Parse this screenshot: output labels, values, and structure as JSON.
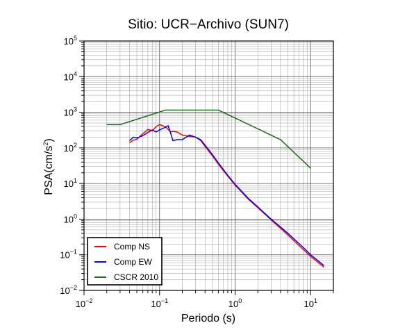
{
  "chart_data": {
    "type": "line",
    "title": "Sitio: UCR−Archivo (SUN7)",
    "xlabel": "Periodo (s)",
    "ylabel_prefix": "PSA(cm/s",
    "ylabel_sup": "2",
    "ylabel_suffix": ")",
    "xscale": "log",
    "yscale": "log",
    "xlim": [
      0.01,
      20
    ],
    "ylim": [
      0.01,
      100000
    ],
    "grid": true,
    "legend_position": "bottom-left",
    "x_ticks": [
      {
        "base": "10",
        "exp": "−2"
      },
      {
        "base": "10",
        "exp": "−1"
      },
      {
        "base": "10",
        "exp": "0"
      },
      {
        "base": "10",
        "exp": "1"
      }
    ],
    "y_ticks": [
      {
        "base": "10",
        "exp": "−2"
      },
      {
        "base": "10",
        "exp": "−1"
      },
      {
        "base": "10",
        "exp": "0"
      },
      {
        "base": "10",
        "exp": "1"
      },
      {
        "base": "10",
        "exp": "2"
      },
      {
        "base": "10",
        "exp": "3"
      },
      {
        "base": "10",
        "exp": "4"
      },
      {
        "base": "10",
        "exp": "5"
      }
    ],
    "series": [
      {
        "name": "Comp NS",
        "color": "#ff0000",
        "x": [
          0.04,
          0.045,
          0.05,
          0.06,
          0.07,
          0.08,
          0.09,
          0.1,
          0.11,
          0.12,
          0.13,
          0.14,
          0.15,
          0.17,
          0.2,
          0.25,
          0.3,
          0.35,
          0.4,
          0.5,
          0.6,
          0.8,
          1.0,
          1.5,
          2.0,
          3.0,
          4.0,
          5.0,
          6.0,
          8.0,
          10.0,
          15.0
        ],
        "y": [
          140,
          165,
          175,
          250,
          330,
          300,
          400,
          450,
          420,
          390,
          330,
          280,
          290,
          280,
          230,
          210,
          200,
          160,
          110,
          60,
          35,
          16,
          9,
          3.6,
          2.1,
          0.95,
          0.55,
          0.36,
          0.25,
          0.14,
          0.09,
          0.045
        ]
      },
      {
        "name": "Comp EW",
        "color": "#0000ff",
        "x": [
          0.04,
          0.045,
          0.05,
          0.06,
          0.07,
          0.08,
          0.09,
          0.1,
          0.11,
          0.12,
          0.13,
          0.14,
          0.15,
          0.17,
          0.2,
          0.25,
          0.3,
          0.35,
          0.4,
          0.5,
          0.6,
          0.8,
          1.0,
          1.5,
          2.0,
          3.0,
          4.0,
          5.0,
          6.0,
          8.0,
          10.0,
          15.0
        ],
        "y": [
          160,
          200,
          190,
          220,
          270,
          320,
          280,
          320,
          350,
          380,
          420,
          260,
          160,
          170,
          170,
          230,
          200,
          170,
          120,
          65,
          38,
          17,
          9.5,
          3.8,
          2.2,
          1.0,
          0.6,
          0.4,
          0.28,
          0.16,
          0.1,
          0.05
        ]
      },
      {
        "name": "CSCR 2010",
        "color": "#1a6b1a",
        "x": [
          0.02,
          0.03,
          0.12,
          0.6,
          4.0,
          10.0
        ],
        "y": [
          450,
          450,
          1150,
          1150,
          170,
          27
        ]
      }
    ]
  }
}
